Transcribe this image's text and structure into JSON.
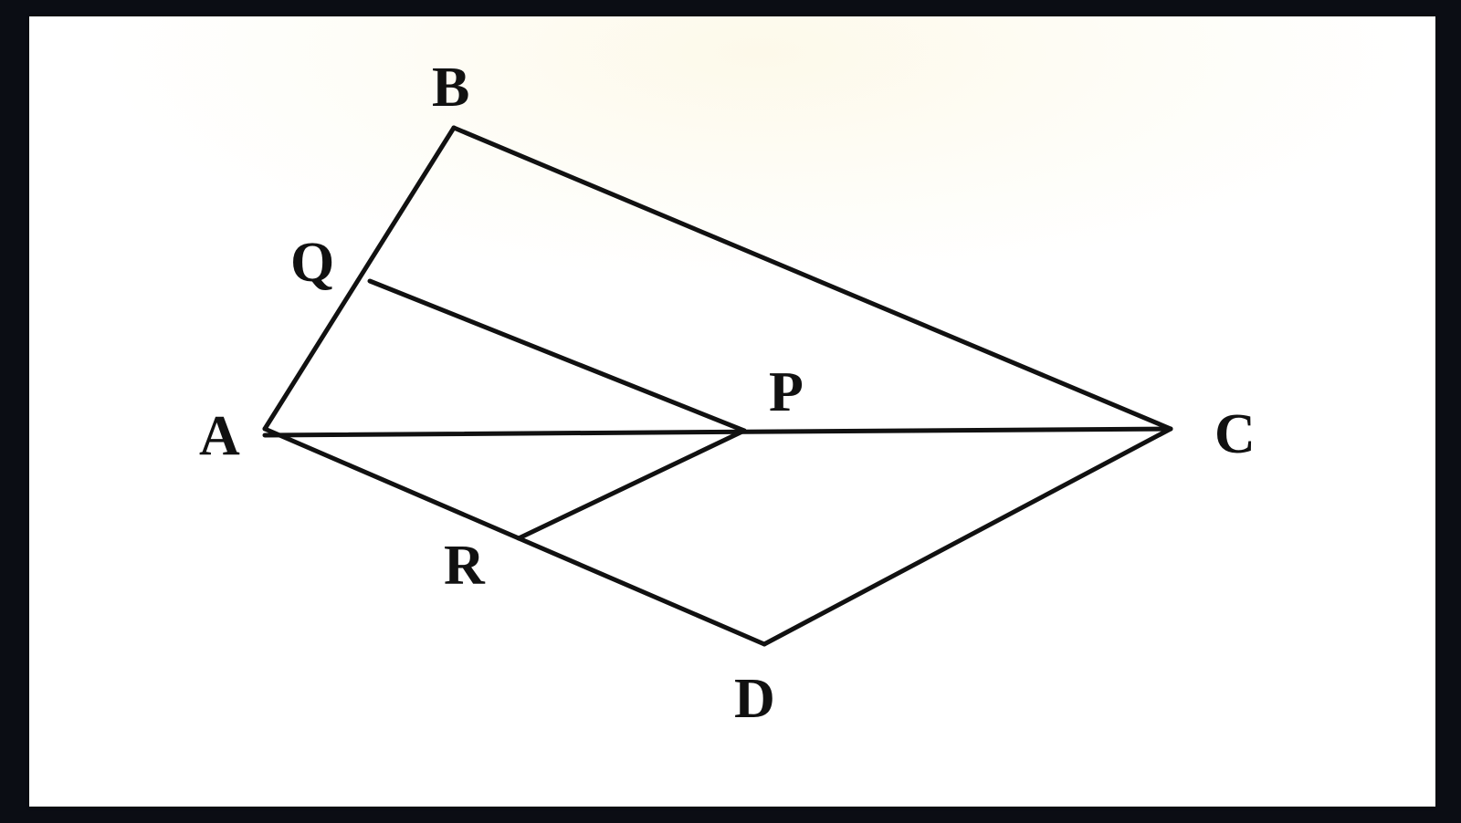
{
  "figure": {
    "vertices": {
      "A": "A",
      "B": "B",
      "C": "C",
      "D": "D",
      "P": "P",
      "Q": "Q",
      "R": "R"
    },
    "segments": [
      "AB",
      "BC",
      "CD",
      "DA",
      "AC",
      "QP",
      "PR"
    ],
    "line_color": "#111111",
    "background_color": "#ffffff",
    "frame_color": "#0b0d14"
  }
}
